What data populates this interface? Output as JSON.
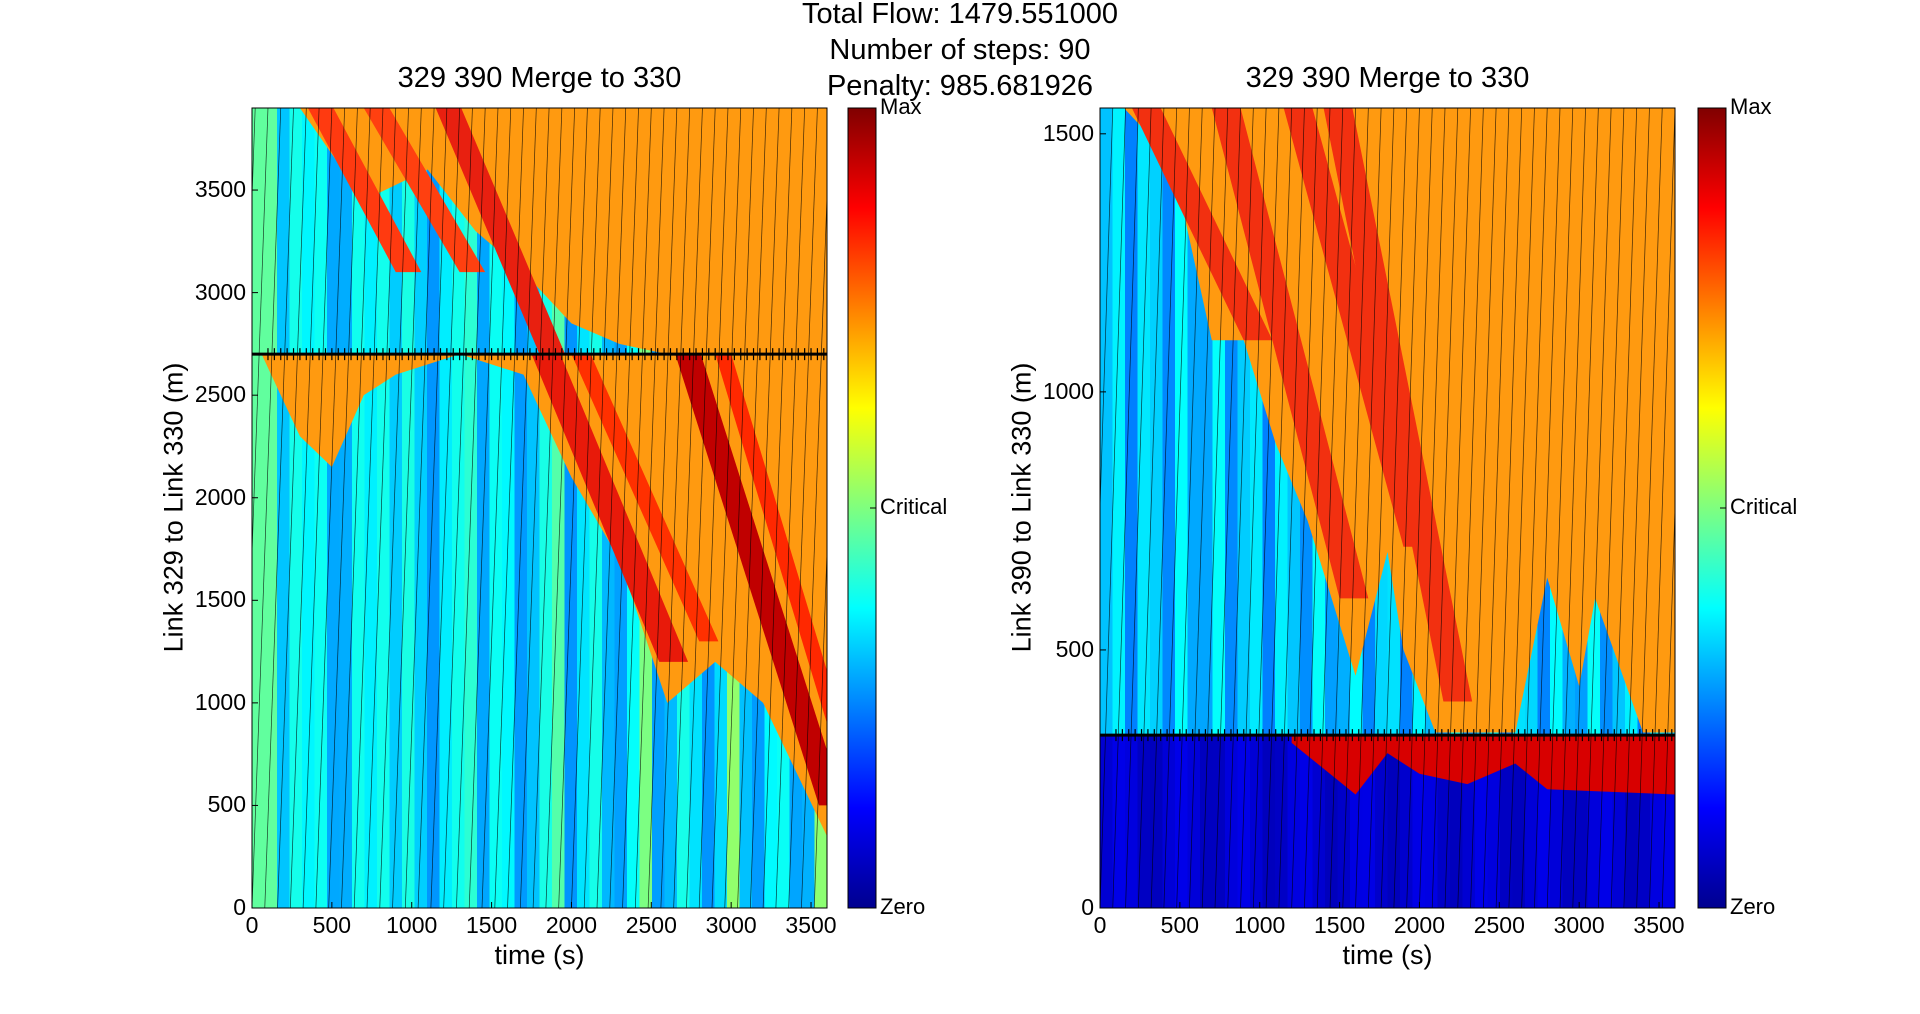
{
  "suptitle": {
    "line1": "Total Flow: 1479.551000",
    "line2": "Number of steps: 90",
    "line3": "Penalty: 985.681926"
  },
  "colormap": "jet",
  "chart_data": [
    {
      "type": "heatmap",
      "title": "329 390 Merge to 330",
      "xlabel": "time (s)",
      "ylabel": "Link 329 to Link 330   (m)",
      "xlim": [
        0,
        3600
      ],
      "ylim": [
        0,
        3900
      ],
      "xticks": [
        0,
        500,
        1000,
        1500,
        2000,
        2500,
        3000,
        3500
      ],
      "yticks": [
        0,
        500,
        1000,
        1500,
        2000,
        2500,
        3000,
        3500
      ],
      "merge_position_m": 2700,
      "colorbar": {
        "labels": [
          "Max",
          "Critical",
          "Zero"
        ]
      },
      "congestion_front_lower": [
        [
          60,
          2700
        ],
        [
          300,
          2300
        ],
        [
          500,
          2150
        ],
        [
          700,
          2500
        ],
        [
          900,
          2600
        ],
        [
          1300,
          2700
        ],
        [
          1700,
          2600
        ],
        [
          2000,
          2100
        ],
        [
          2300,
          1700
        ],
        [
          2600,
          1000
        ],
        [
          2900,
          1200
        ],
        [
          3200,
          1000
        ],
        [
          3600,
          350
        ]
      ],
      "congestion_front_upper": [
        [
          300,
          3900
        ],
        [
          700,
          3450
        ],
        [
          1100,
          3600
        ],
        [
          1400,
          3300
        ],
        [
          1700,
          3100
        ],
        [
          2000,
          2850
        ],
        [
          2300,
          2750
        ],
        [
          2600,
          2700
        ],
        [
          3600,
          2700
        ]
      ]
    },
    {
      "type": "heatmap",
      "title": "329 390 Merge to 330",
      "xlabel": "time (s)",
      "ylabel": "Link 390 to Link 330   (m)",
      "xlim": [
        0,
        3600
      ],
      "ylim": [
        0,
        1550
      ],
      "xticks": [
        0,
        500,
        1000,
        1500,
        2000,
        2500,
        3000,
        3500
      ],
      "yticks": [
        0,
        500,
        1000,
        1500
      ],
      "merge_position_m": 335,
      "colorbar": {
        "labels": [
          "Max",
          "Critical",
          "Zero"
        ]
      },
      "congestion_front": [
        [
          150,
          1550
        ],
        [
          450,
          1450
        ],
        [
          700,
          1100
        ],
        [
          900,
          1100
        ],
        [
          1100,
          900
        ],
        [
          1300,
          750
        ],
        [
          1600,
          450
        ],
        [
          1800,
          690
        ],
        [
          1900,
          500
        ],
        [
          2100,
          340
        ],
        [
          2600,
          340
        ],
        [
          2800,
          640
        ],
        [
          3000,
          430
        ],
        [
          3100,
          600
        ],
        [
          3400,
          340
        ],
        [
          3600,
          340
        ]
      ],
      "queue_boundary_lower": [
        [
          1200,
          320
        ],
        [
          1600,
          220
        ],
        [
          1800,
          300
        ],
        [
          2000,
          260
        ],
        [
          2300,
          240
        ],
        [
          2600,
          280
        ],
        [
          2800,
          230
        ],
        [
          3600,
          220
        ]
      ]
    }
  ]
}
